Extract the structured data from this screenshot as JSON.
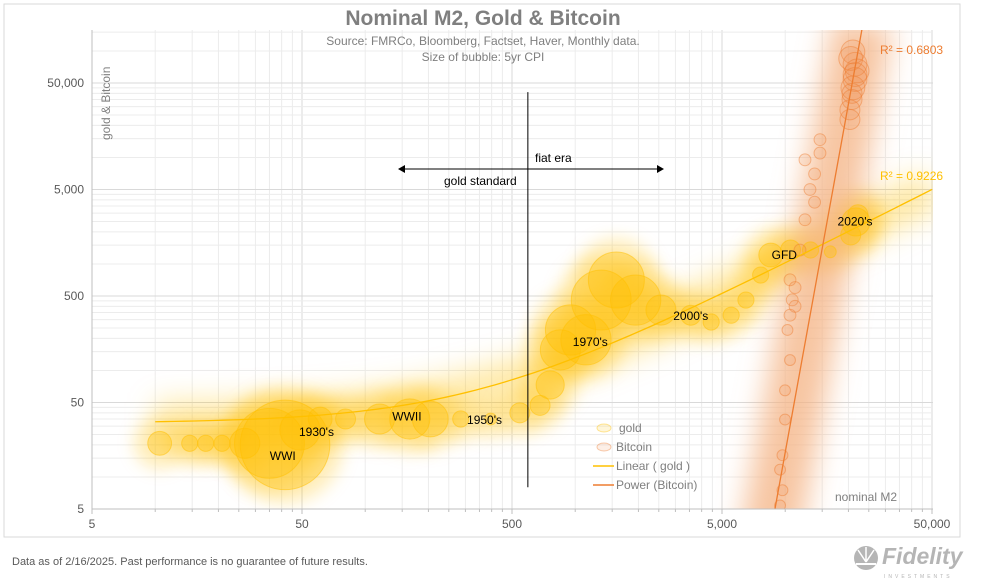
{
  "chart_data": {
    "type": "scatter",
    "title": "Nominal M2, Gold & Bitcoin",
    "subtitle": [
      "Source: FMRCo, Bloomberg, Factset, Haver, Monthly data.",
      "Size of bubble: 5yr CPI"
    ],
    "xlabel": "nominal M2",
    "ylabel": "gold & Bitcoin",
    "xscale": "log",
    "yscale": "log",
    "xlim": [
      5,
      50000
    ],
    "ylim": [
      5,
      158000
    ],
    "xticks": [
      "5",
      "50",
      "500",
      "5,000",
      "50,000"
    ],
    "yticks": [
      "5",
      "50",
      "500",
      "5,000",
      "50,000"
    ],
    "grid": true,
    "legend_position": "bottom-center",
    "colors": {
      "gold": "#FFC000",
      "bitcoin": "#ED7D31",
      "text": "#7f7f7f"
    },
    "series": [
      {
        "name": "gold",
        "type": "bubble",
        "points": [
          [
            10.5,
            20.7,
            3.3
          ],
          [
            14.6,
            20.7,
            1.7
          ],
          [
            17.4,
            20.7,
            1.7
          ],
          [
            20.8,
            20.7,
            1.7
          ],
          [
            26.7,
            20.7,
            4.6
          ],
          [
            35,
            20.7,
            12.9
          ],
          [
            41.5,
            20,
            17
          ],
          [
            48.9,
            27.6,
            6.7
          ],
          [
            61,
            35,
            3.3
          ],
          [
            80.6,
            35,
            2.5
          ],
          [
            117,
            35,
            4.6
          ],
          [
            163,
            35,
            6.7
          ],
          [
            204,
            35,
            5.8
          ],
          [
            285,
            35,
            1.7
          ],
          [
            396,
            35,
            0.8
          ],
          [
            545,
            40,
            2.5
          ],
          [
            680,
            47,
            2.5
          ],
          [
            760,
            73,
            4.2
          ],
          [
            850,
            156,
            6.7
          ],
          [
            950,
            240,
            8.8
          ],
          [
            1125,
            194,
            8.8
          ],
          [
            1330,
            458,
            10.8
          ],
          [
            1570,
            706,
            10
          ],
          [
            1940,
            458,
            8.8
          ],
          [
            2560,
            369,
            4.6
          ],
          [
            3550,
            330,
            2.5
          ],
          [
            4440,
            285,
            1.7
          ],
          [
            5530,
            330,
            1.7
          ],
          [
            6500,
            458,
            1.7
          ],
          [
            7640,
            787,
            1.7
          ],
          [
            8530,
            1213,
            3.3
          ],
          [
            10600,
            1352,
            2.5
          ],
          [
            13200,
            1352,
            1.7
          ],
          [
            16400,
            1300,
            0.8
          ],
          [
            20500,
            1870,
            2.5
          ],
          [
            21700,
            2480,
            4.2
          ],
          [
            22200,
            2900,
            2.5
          ]
        ]
      },
      {
        "name": "Bitcoin",
        "type": "bubble",
        "points": [
          [
            9450,
            5.4,
            0.6
          ],
          [
            9700,
            7.5,
            0.6
          ],
          [
            9450,
            11.7,
            0.6
          ],
          [
            9700,
            16,
            0.6
          ],
          [
            9980,
            34.6,
            0.6
          ],
          [
            9980,
            65,
            0.6
          ],
          [
            10540,
            125,
            0.6
          ],
          [
            10250,
            240,
            0.6
          ],
          [
            10540,
            330,
            0.8
          ],
          [
            10800,
            460,
            0.8
          ],
          [
            11140,
            600,
            0.8
          ],
          [
            10540,
            710,
            0.8
          ],
          [
            11140,
            400,
            0.8
          ],
          [
            11760,
            1350,
            0.8
          ],
          [
            12420,
            2600,
            0.8
          ],
          [
            13120,
            5000,
            0.8
          ],
          [
            12420,
            9500,
            0.8
          ],
          [
            13800,
            3800,
            0.8
          ],
          [
            14640,
            14700,
            0.8
          ],
          [
            13800,
            7000,
            0.8
          ],
          [
            14640,
            11000,
            0.8
          ],
          [
            20330,
            22700,
            2.5
          ],
          [
            20800,
            35000,
            2.5
          ],
          [
            21000,
            45000,
            3.3
          ],
          [
            21500,
            54000,
            3.3
          ],
          [
            21500,
            60000,
            3.3
          ],
          [
            21500,
            75000,
            3.3
          ],
          [
            21000,
            98000,
            3.3
          ],
          [
            20330,
            28000,
            2.5
          ],
          [
            20800,
            40000,
            2.5
          ],
          [
            22000,
            65000,
            3.3
          ],
          [
            20500,
            85000,
            3.3
          ]
        ]
      }
    ],
    "trendlines": [
      {
        "name": "Linear ( gold )",
        "type": "linear",
        "of": "gold",
        "r2_label": "R² = 0.9226"
      },
      {
        "name": "Power (Bitcoin)",
        "type": "power",
        "of": "Bitcoin",
        "r2_label": "R² = 0.6803"
      }
    ],
    "annotations": {
      "eras": [
        {
          "label": "WWI",
          "x": 40.5,
          "y": 15.7
        },
        {
          "label": "1930's",
          "x": 58.6,
          "y": 26.4
        },
        {
          "label": "WWII",
          "x": 158,
          "y": 37
        },
        {
          "label": "1950's",
          "x": 370,
          "y": 34.4
        },
        {
          "label": "1970's",
          "x": 1180,
          "y": 184
        },
        {
          "label": "2000's",
          "x": 3550,
          "y": 324
        },
        {
          "label": "GFD",
          "x": 9900,
          "y": 1210
        },
        {
          "label": "2020's",
          "x": 21500,
          "y": 2500
        }
      ],
      "divider": {
        "x": 595,
        "y_from": 8,
        "y_to": 41000
      },
      "fiat_era": {
        "label": "fiat era",
        "direction": "right"
      },
      "gold_standard": {
        "label": "gold standard",
        "direction": "left"
      }
    }
  },
  "footer": {
    "disclaimer": "Data as of 2/16/2025. Past performance is no guarantee of future results.",
    "logo_text": "Fidelity",
    "logo_subtext": "INVESTMENTS"
  }
}
